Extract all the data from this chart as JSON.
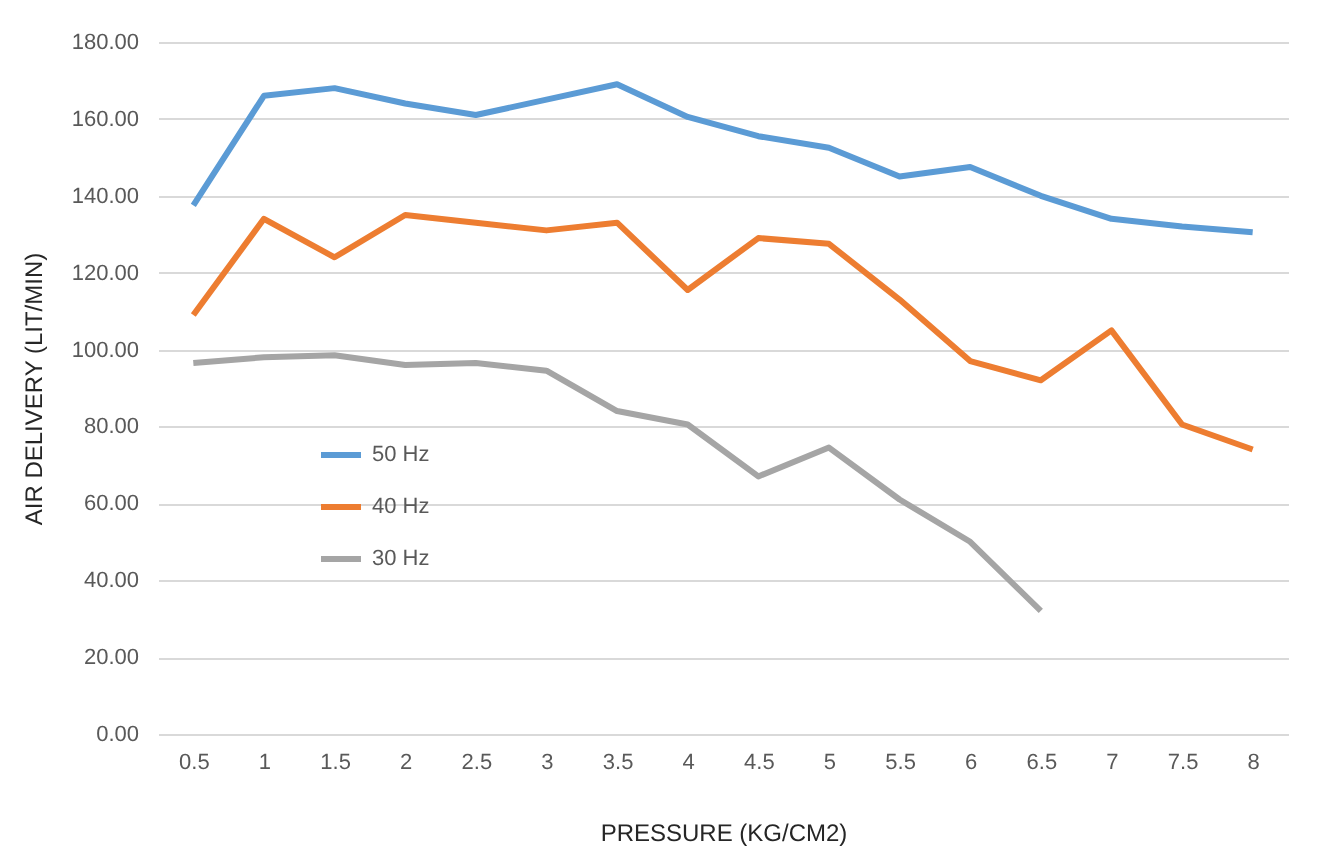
{
  "chart_data": {
    "type": "line",
    "xlabel": "PRESSURE (KG/CM2)",
    "ylabel": "AIR DELIVERY (LIT/MIN)",
    "categories": [
      "0.5",
      "1",
      "1.5",
      "2",
      "2.5",
      "3",
      "3.5",
      "4",
      "4.5",
      "5",
      "5.5",
      "6",
      "6.5",
      "7",
      "7.5",
      "8"
    ],
    "series": [
      {
        "name": "50 Hz",
        "color": "#5b9bd5",
        "values": [
          137.5,
          166,
          168,
          164,
          161,
          165,
          169,
          160.5,
          155.5,
          152.5,
          145,
          147.5,
          140,
          134,
          132,
          130.5
        ]
      },
      {
        "name": "40 Hz",
        "color": "#ed7d31",
        "values": [
          109,
          134,
          124,
          135,
          133,
          131,
          133,
          115.5,
          129,
          127.5,
          113,
          97,
          92,
          105,
          80.5,
          74
        ]
      },
      {
        "name": "30 Hz",
        "color": "#a5a5a5",
        "values": [
          96.5,
          98,
          98.5,
          96,
          96.5,
          94.5,
          84,
          80.5,
          67,
          74.5,
          61,
          50,
          32,
          null,
          null,
          null
        ]
      }
    ],
    "ylim": [
      0,
      180
    ],
    "yticks": [
      {
        "value": 0,
        "label": "0.00"
      },
      {
        "value": 20,
        "label": "20.00"
      },
      {
        "value": 40,
        "label": "40.00"
      },
      {
        "value": 60,
        "label": "60.00"
      },
      {
        "value": 80,
        "label": "80.00"
      },
      {
        "value": 100,
        "label": "100.00"
      },
      {
        "value": 120,
        "label": "120.00"
      },
      {
        "value": 140,
        "label": "140.00"
      },
      {
        "value": 160,
        "label": "160.00"
      },
      {
        "value": 180,
        "label": "180.00"
      }
    ],
    "grid": "y",
    "legend": "left",
    "marker": "none",
    "line_style": "solid"
  }
}
